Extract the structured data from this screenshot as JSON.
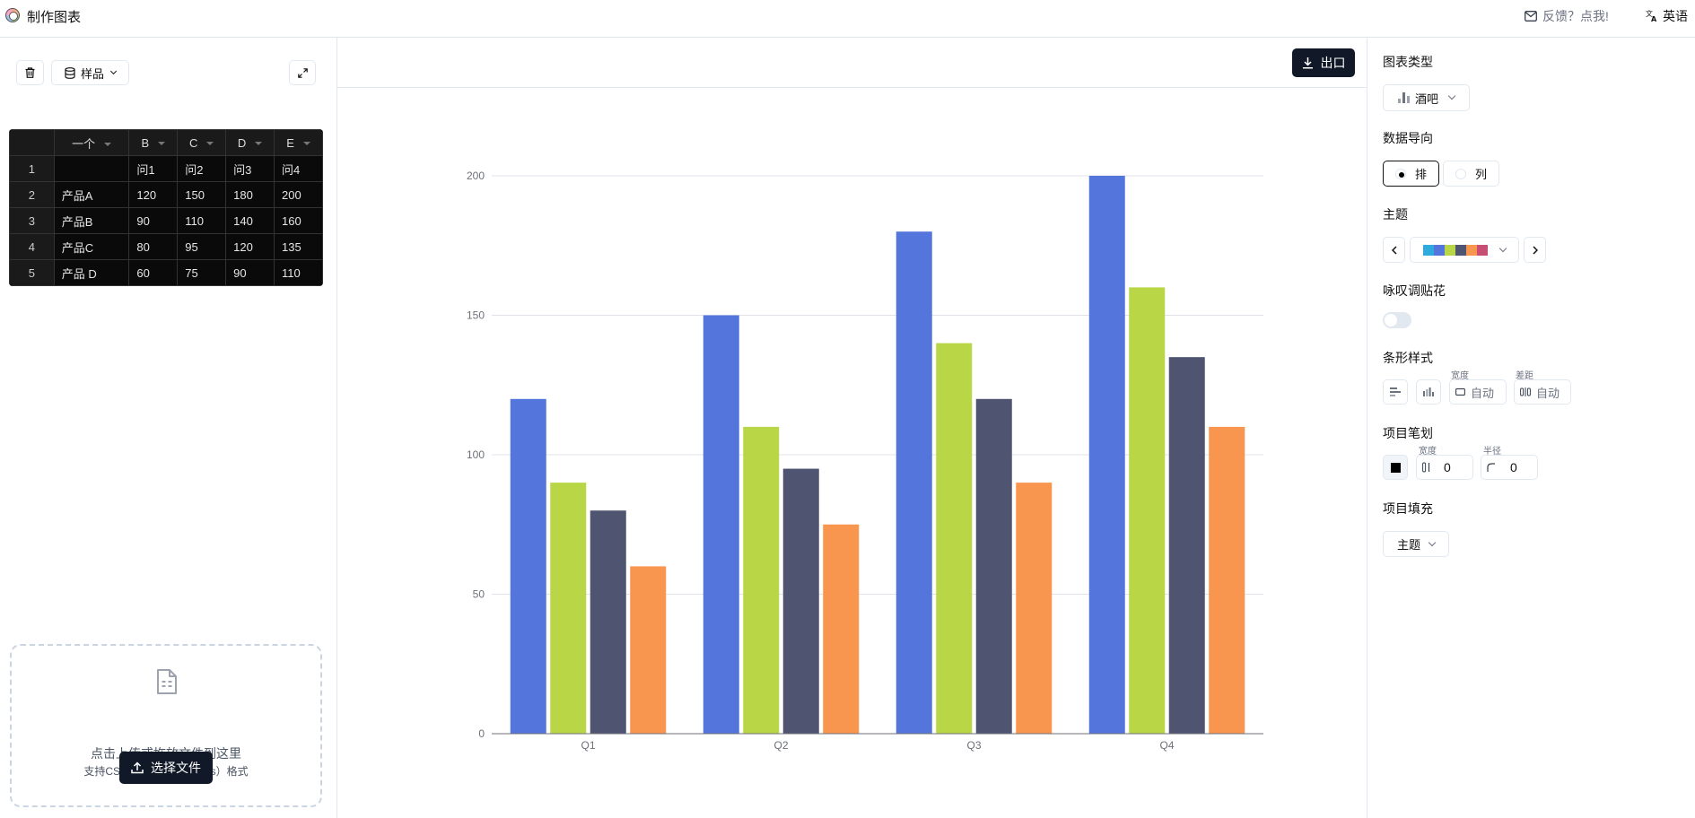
{
  "header": {
    "app_title": "制作图表",
    "feedback_label": "反馈？点我!",
    "language_label": "英语"
  },
  "left_panel": {
    "sample_label": "样品",
    "sheet": {
      "columns": [
        "一个",
        "B",
        "C",
        "D",
        "E"
      ],
      "rows": [
        {
          "num": "1",
          "cells": [
            "",
            "问1",
            "问2",
            "问3",
            "问4"
          ]
        },
        {
          "num": "2",
          "cells": [
            "产品A",
            "120",
            "150",
            "180",
            "200"
          ]
        },
        {
          "num": "3",
          "cells": [
            "产品B",
            "90",
            "110",
            "140",
            "160"
          ]
        },
        {
          "num": "4",
          "cells": [
            "产品C",
            "80",
            "95",
            "120",
            "135"
          ]
        },
        {
          "num": "5",
          "cells": [
            "产品 D",
            "60",
            "75",
            "90",
            "110"
          ]
        }
      ]
    },
    "upload": {
      "title": "点击上传或拖放文件到这里",
      "subtitle": "支持CSV、Excel（.xlsx/.xls）格式",
      "button_label": "选择文件"
    }
  },
  "center": {
    "export_label": "出口"
  },
  "right_panel": {
    "chart_type_label": "图表类型",
    "chart_type_value": "酒吧",
    "orientation_label": "数据导向",
    "orientation_options": [
      "排",
      "列"
    ],
    "orientation_selected": "排",
    "theme_label": "主题",
    "theme_colors": [
      "#2eaadc",
      "#5475db",
      "#b8d645",
      "#4f5470",
      "#f8954f",
      "#c74f73"
    ],
    "decal_label": "咏叹调贴花",
    "decal_enabled": false,
    "bar_style_label": "条形样式",
    "bar_width_label": "宽度",
    "bar_width_value": "自动",
    "bar_gap_label": "差距",
    "bar_gap_value": "自动",
    "item_stroke_label": "项目笔划",
    "stroke_width_label": "宽度",
    "stroke_width_value": "0",
    "stroke_radius_label": "半径",
    "stroke_radius_value": "0",
    "item_fill_label": "项目填充",
    "item_fill_value": "主题"
  },
  "chart_data": {
    "type": "bar",
    "title": "",
    "categories": [
      "Q1",
      "Q2",
      "Q3",
      "Q4"
    ],
    "series": [
      {
        "name": "产品A",
        "color": "#5475db",
        "values": [
          120,
          150,
          180,
          200
        ]
      },
      {
        "name": "产品B",
        "color": "#b8d645",
        "values": [
          90,
          110,
          140,
          160
        ]
      },
      {
        "name": "产品C",
        "color": "#4f5470",
        "values": [
          80,
          95,
          120,
          135
        ]
      },
      {
        "name": "产品 D",
        "color": "#f8954f",
        "values": [
          60,
          75,
          90,
          110
        ]
      }
    ],
    "xlabel": "",
    "ylabel": "",
    "ylim": [
      0,
      200
    ],
    "yticks": [
      0,
      50,
      100,
      150,
      200
    ],
    "grid": true,
    "legend": "none"
  }
}
